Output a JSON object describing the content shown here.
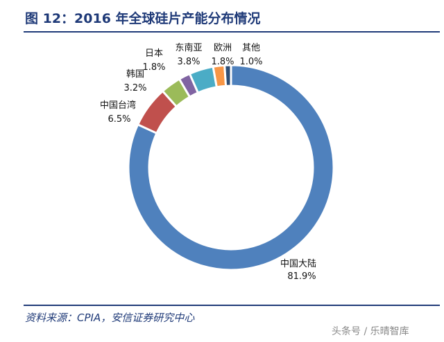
{
  "header": {
    "title": "图 12：2016 年全球硅片产能分布情况"
  },
  "footer": {
    "source": "资料来源：CPIA，安信证券研究中心",
    "watermark": "头条号 / 乐晴智库"
  },
  "chart_data": {
    "type": "pie",
    "variant": "donut",
    "title": "2016 年全球硅片产能分布情况",
    "slices": [
      {
        "label": "中国大陆",
        "value": 81.9,
        "value_label": "81.9%",
        "color": "#4f81bd"
      },
      {
        "label": "中国台湾",
        "value": 6.5,
        "value_label": "6.5%",
        "color": "#c0504d"
      },
      {
        "label": "韩国",
        "value": 3.2,
        "value_label": "3.2%",
        "color": "#9bbb59"
      },
      {
        "label": "日本",
        "value": 1.8,
        "value_label": "1.8%",
        "color": "#8064a2"
      },
      {
        "label": "东南亚",
        "value": 3.8,
        "value_label": "3.8%",
        "color": "#4bacc6"
      },
      {
        "label": "欧洲",
        "value": 1.8,
        "value_label": "1.8%",
        "color": "#f79646"
      },
      {
        "label": "其他",
        "value": 1.0,
        "value_label": "1.0%",
        "color": "#2c4d75"
      }
    ]
  }
}
